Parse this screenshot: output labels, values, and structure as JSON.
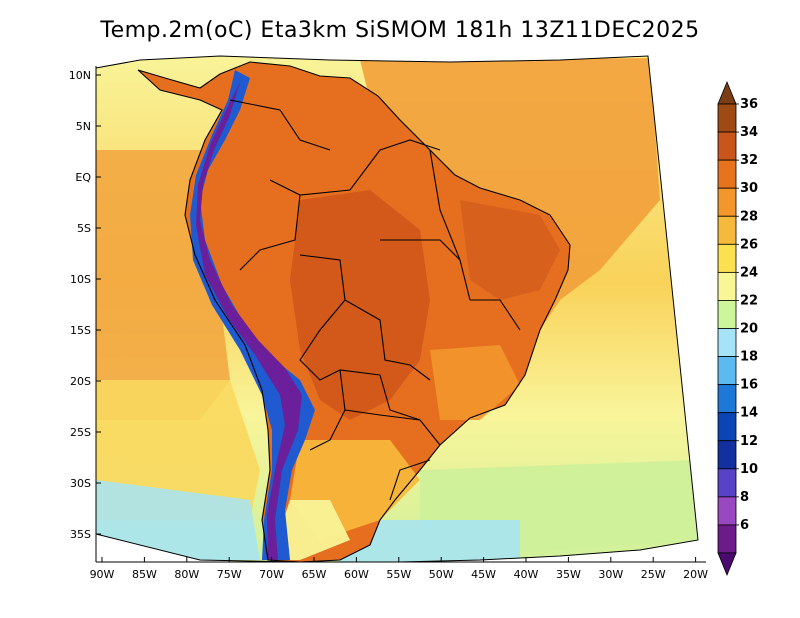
{
  "title": "Temp.2m(oC) Eta3km SiSMOM 181h 13Z11DEC2025",
  "axes": {
    "lat_labels": [
      "10N",
      "5N",
      "EQ",
      "5S",
      "10S",
      "15S",
      "20S",
      "25S",
      "30S",
      "35S"
    ],
    "lon_labels": [
      "90W",
      "85W",
      "80W",
      "75W",
      "70W",
      "65W",
      "60W",
      "55W",
      "50W",
      "45W",
      "40W",
      "35W",
      "30W",
      "25W",
      "20W"
    ]
  },
  "colorbar": {
    "labels": [
      "36",
      "34",
      "32",
      "30",
      "28",
      "26",
      "24",
      "22",
      "20",
      "18",
      "16",
      "14",
      "12",
      "10",
      "8",
      "6"
    ],
    "colors": [
      "#7a3d14",
      "#9e4a12",
      "#c8561a",
      "#e7731c",
      "#f3962c",
      "#f7b93c",
      "#fbe050",
      "#f9f696",
      "#cdf59a",
      "#a5e4f8",
      "#5dbaf0",
      "#1e78d8",
      "#0b45b5",
      "#1230a0",
      "#5842c8",
      "#9a48c2",
      "#6d1a8a",
      "#4a0a70"
    ]
  },
  "colors": {
    "ocean_warm": "#f2a03a",
    "ocean_mid": "#f9d25a",
    "ocean_cool": "#f9f49a",
    "ocean_cold": "#cdf19a",
    "land_hot": "#e56f1e",
    "land_very_hot": "#cf561a",
    "andes_cold": "#6b1f9a",
    "andes_blue": "#1f5ad0",
    "border": "#000000"
  }
}
